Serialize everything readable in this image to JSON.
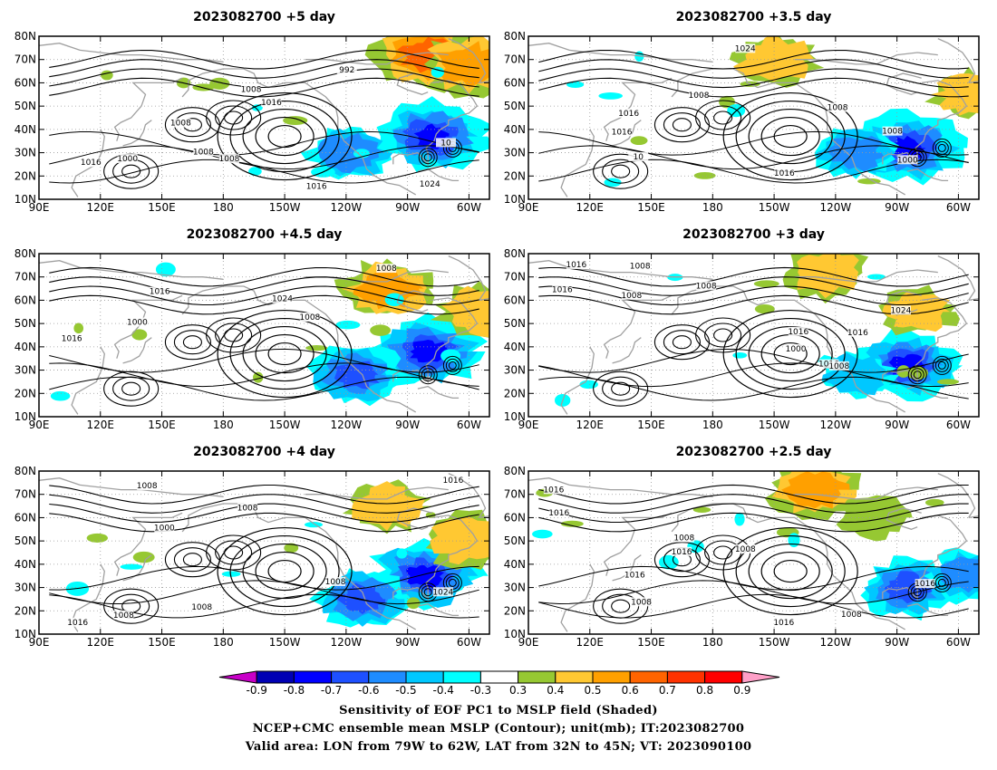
{
  "panels": [
    {
      "title": "2023082700  +5 day",
      "contour_labels": [
        "1000",
        "1008",
        "992",
        "1016",
        "1016",
        "1008",
        "1024",
        "1016",
        "1008",
        "1008",
        "10"
      ],
      "neg_blobs": [
        {
          "lon": -78,
          "lat": 37,
          "r": 1.0
        },
        {
          "lon": -118,
          "lat": 30,
          "r": 0.6
        }
      ],
      "pos_blobs": [
        {
          "lon": -80,
          "lat": 72,
          "r": 1.0
        },
        {
          "lon": -60,
          "lat": 68,
          "r": 0.8
        }
      ]
    },
    {
      "title": "2023082700  +3.5 day",
      "contour_labels": [
        "1016",
        "1016",
        "1008",
        "1000",
        "1008",
        "1024",
        "1016",
        "1008",
        "10"
      ],
      "neg_blobs": [
        {
          "lon": -85,
          "lat": 32,
          "r": 1.0
        },
        {
          "lon": -110,
          "lat": 30,
          "r": 0.5
        }
      ],
      "pos_blobs": [
        {
          "lon": -150,
          "lat": 70,
          "r": 0.6
        },
        {
          "lon": -55,
          "lat": 55,
          "r": 0.4
        }
      ]
    },
    {
      "title": "2023082700  +4.5 day",
      "contour_labels": [
        "1000",
        "1008",
        "1016",
        "1016",
        "1008",
        "1024"
      ],
      "neg_blobs": [
        {
          "lon": -80,
          "lat": 38,
          "r": 1.0
        },
        {
          "lon": -115,
          "lat": 28,
          "r": 0.7
        }
      ],
      "pos_blobs": [
        {
          "lon": -100,
          "lat": 65,
          "r": 0.7
        },
        {
          "lon": -55,
          "lat": 55,
          "r": 0.6
        }
      ]
    },
    {
      "title": "2023082700  +3 day",
      "contour_labels": [
        "1008",
        "1016",
        "1016",
        "1000",
        "1008",
        "1016",
        "1016",
        "1024",
        "1008",
        "1016",
        "1008"
      ],
      "neg_blobs": [
        {
          "lon": -85,
          "lat": 32,
          "r": 0.9
        },
        {
          "lon": -110,
          "lat": 28,
          "r": 0.4
        }
      ],
      "pos_blobs": [
        {
          "lon": -125,
          "lat": 72,
          "r": 0.6
        },
        {
          "lon": -80,
          "lat": 55,
          "r": 0.4
        }
      ]
    },
    {
      "title": "2023082700  +4 day",
      "contour_labels": [
        "1008",
        "1000",
        "1008",
        "1016",
        "1008",
        "1008",
        "1016",
        "1024",
        "1008"
      ],
      "neg_blobs": [
        {
          "lon": -82,
          "lat": 35,
          "r": 1.0
        },
        {
          "lon": -112,
          "lat": 25,
          "r": 0.7
        }
      ],
      "pos_blobs": [
        {
          "lon": -100,
          "lat": 65,
          "r": 0.5
        },
        {
          "lon": -60,
          "lat": 50,
          "r": 0.6
        }
      ]
    },
    {
      "title": "2023082700  +2.5 day",
      "contour_labels": [
        "1008",
        "1008",
        "1016",
        "1008",
        "1016",
        "1008",
        "1016",
        "1016",
        "1016",
        "1016"
      ],
      "neg_blobs": [
        {
          "lon": -85,
          "lat": 30,
          "r": 0.7
        },
        {
          "lon": -55,
          "lat": 35,
          "r": 0.5
        }
      ],
      "pos_blobs": [
        {
          "lon": -130,
          "lat": 72,
          "r": 0.7
        },
        {
          "lon": -100,
          "lat": 60,
          "r": 0.3
        }
      ]
    }
  ],
  "axes": {
    "lon_ticks": [
      "90E",
      "120E",
      "150E",
      "180",
      "150W",
      "120W",
      "90W",
      "60W"
    ],
    "lat_ticks": [
      "80N",
      "70N",
      "60N",
      "50N",
      "40N",
      "30N",
      "20N",
      "10N"
    ]
  },
  "colorbar": {
    "ticks": [
      "-0.9",
      "-0.8",
      "-0.7",
      "-0.6",
      "-0.5",
      "-0.4",
      "-0.3",
      "0.3",
      "0.4",
      "0.5",
      "0.6",
      "0.7",
      "0.8",
      "0.9"
    ],
    "colors": [
      "#c800c8",
      "#0000b4",
      "#0000ff",
      "#1e50ff",
      "#1e8cff",
      "#00c8ff",
      "#00ffff",
      "#ffffff",
      "#96c832",
      "#ffc832",
      "#ffa000",
      "#ff6400",
      "#ff3200",
      "#ff0000",
      "#ffa0c8"
    ]
  },
  "captions": [
    "Sensitivity of EOF PC1 to MSLP field (Shaded)",
    "NCEP+CMC ensemble mean MSLP (Contour); unit(mb); IT:2023082700",
    "Valid area: LON from 79W to 62W, LAT from 32N to 45N; VT: 2023090100"
  ]
}
